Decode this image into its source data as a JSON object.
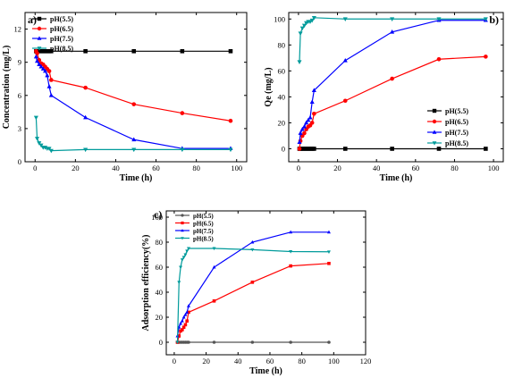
{
  "chart_data": [
    {
      "id": "a",
      "type": "line",
      "panel_label": "a)",
      "xlabel": "Time (h)",
      "ylabel": "Concentration (mg/L)",
      "xlim": [
        -5,
        105
      ],
      "ylim": [
        0,
        13.5
      ],
      "xticks": [
        0,
        20,
        40,
        60,
        80,
        100
      ],
      "yticks": [
        0,
        3,
        6,
        9,
        12
      ],
      "legend_position": "top-left",
      "series": [
        {
          "name": "pH(5.5)",
          "color": "#000000",
          "marker": "square",
          "points": [
            [
              0.5,
              10
            ],
            [
              1,
              10
            ],
            [
              2,
              10
            ],
            [
              3,
              10
            ],
            [
              4,
              10
            ],
            [
              5,
              10
            ],
            [
              6,
              10
            ],
            [
              7,
              10
            ],
            [
              8,
              10
            ],
            [
              25,
              10
            ],
            [
              49,
              10
            ],
            [
              73,
              10
            ],
            [
              97,
              10
            ]
          ]
        },
        {
          "name": "pH(6.5)",
          "color": "#ff0000",
          "marker": "circle",
          "points": [
            [
              0.5,
              10
            ],
            [
              1,
              9.8
            ],
            [
              2,
              9.2
            ],
            [
              3,
              8.9
            ],
            [
              4,
              8.8
            ],
            [
              5,
              8.6
            ],
            [
              6,
              8.4
            ],
            [
              7,
              8.2
            ],
            [
              8,
              7.4
            ],
            [
              25,
              6.7
            ],
            [
              49,
              5.2
            ],
            [
              73,
              4.4
            ],
            [
              97,
              3.7
            ]
          ]
        },
        {
          "name": "pH(7.5)",
          "color": "#0000ff",
          "marker": "triangle-up",
          "points": [
            [
              0.5,
              9.5
            ],
            [
              1,
              9.1
            ],
            [
              2,
              8.8
            ],
            [
              3,
              8.6
            ],
            [
              4,
              8.4
            ],
            [
              5,
              8.2
            ],
            [
              6,
              7.8
            ],
            [
              7,
              6.8
            ],
            [
              8,
              6.0
            ],
            [
              25,
              4.0
            ],
            [
              49,
              2.0
            ],
            [
              73,
              1.2
            ],
            [
              97,
              1.2
            ]
          ]
        },
        {
          "name": "pH(8.5)",
          "color": "#009b9b",
          "marker": "triangle-down",
          "points": [
            [
              0.5,
              4.0
            ],
            [
              1,
              2.1
            ],
            [
              2,
              1.7
            ],
            [
              3,
              1.5
            ],
            [
              4,
              1.3
            ],
            [
              5,
              1.3
            ],
            [
              6,
              1.2
            ],
            [
              7,
              1.2
            ],
            [
              8,
              1.0
            ],
            [
              25,
              1.1
            ],
            [
              49,
              1.1
            ],
            [
              73,
              1.1
            ],
            [
              97,
              1.1
            ]
          ]
        }
      ]
    },
    {
      "id": "b",
      "type": "line",
      "panel_label": "b)",
      "xlabel": "Time (h)",
      "ylabel": "Qe (mg/L)",
      "xlim": [
        -5,
        105
      ],
      "ylim": [
        -10,
        105
      ],
      "xticks": [
        0,
        20,
        40,
        60,
        80,
        100
      ],
      "yticks": [
        0,
        20,
        40,
        60,
        80,
        100
      ],
      "legend_position": "lower-right",
      "series": [
        {
          "name": "pH(5.5)",
          "color": "#000000",
          "marker": "square",
          "points": [
            [
              0.5,
              0
            ],
            [
              1,
              0
            ],
            [
              2,
              0
            ],
            [
              3,
              0
            ],
            [
              4,
              0
            ],
            [
              5,
              0
            ],
            [
              6,
              0
            ],
            [
              7,
              0
            ],
            [
              8,
              0
            ],
            [
              24,
              0
            ],
            [
              48,
              0
            ],
            [
              72,
              0
            ],
            [
              96,
              0
            ]
          ]
        },
        {
          "name": "pH(6.5)",
          "color": "#ff0000",
          "marker": "circle",
          "points": [
            [
              0.5,
              0
            ],
            [
              1,
              6
            ],
            [
              2,
              10
            ],
            [
              3,
              12
            ],
            [
              4,
              15
            ],
            [
              5,
              17
            ],
            [
              6,
              18
            ],
            [
              7,
              20
            ],
            [
              8,
              27
            ],
            [
              24,
              37
            ],
            [
              48,
              54
            ],
            [
              72,
              69
            ],
            [
              96,
              71
            ]
          ]
        },
        {
          "name": "pH(7.5)",
          "color": "#0000ff",
          "marker": "triangle-up",
          "points": [
            [
              0.5,
              5
            ],
            [
              1,
              12
            ],
            [
              2,
              15
            ],
            [
              3,
              17
            ],
            [
              4,
              20
            ],
            [
              5,
              22
            ],
            [
              6,
              24
            ],
            [
              7,
              36
            ],
            [
              8,
              45
            ],
            [
              24,
              68
            ],
            [
              48,
              90
            ],
            [
              72,
              99
            ],
            [
              96,
              99
            ]
          ]
        },
        {
          "name": "pH(8.5)",
          "color": "#009b9b",
          "marker": "triangle-down",
          "points": [
            [
              0.5,
              67
            ],
            [
              1,
              89
            ],
            [
              2,
              93
            ],
            [
              3,
              95
            ],
            [
              4,
              97
            ],
            [
              5,
              98
            ],
            [
              6,
              98
            ],
            [
              7,
              99
            ],
            [
              8,
              101
            ],
            [
              24,
              100
            ],
            [
              48,
              100
            ],
            [
              72,
              100
            ],
            [
              96,
              100
            ]
          ]
        }
      ]
    },
    {
      "id": "c",
      "type": "line",
      "panel_label": "c)",
      "xlabel": "Time (h)",
      "ylabel": "Adsorption efficiency(%)",
      "xlim": [
        -5,
        120
      ],
      "ylim": [
        -10,
        105
      ],
      "xticks": [
        0,
        20,
        40,
        60,
        80,
        100,
        120
      ],
      "yticks": [
        0,
        20,
        40,
        60,
        80,
        100
      ],
      "legend_position": "top-left",
      "series": [
        {
          "name": "pH(5.5)",
          "color": "#555555",
          "marker": "circle",
          "points": [
            [
              2,
              0
            ],
            [
              3,
              0
            ],
            [
              4,
              0
            ],
            [
              5,
              0
            ],
            [
              6,
              0
            ],
            [
              7,
              0
            ],
            [
              8,
              0
            ],
            [
              9,
              0
            ],
            [
              25,
              0
            ],
            [
              49,
              0
            ],
            [
              73,
              0
            ],
            [
              97,
              0
            ]
          ]
        },
        {
          "name": "pH(6.5)",
          "color": "#ff0000",
          "marker": "square",
          "points": [
            [
              2,
              0
            ],
            [
              3,
              5
            ],
            [
              4,
              9
            ],
            [
              5,
              10
            ],
            [
              6,
              12
            ],
            [
              7,
              14
            ],
            [
              8,
              17
            ],
            [
              9,
              24
            ],
            [
              25,
              33
            ],
            [
              49,
              48
            ],
            [
              73,
              61
            ],
            [
              97,
              63
            ]
          ]
        },
        {
          "name": "pH(7.5)",
          "color": "#0000ff",
          "marker": "triangle-up",
          "points": [
            [
              2,
              5
            ],
            [
              3,
              12
            ],
            [
              4,
              15
            ],
            [
              5,
              17
            ],
            [
              6,
              20
            ],
            [
              7,
              22
            ],
            [
              8,
              24
            ],
            [
              9,
              29
            ],
            [
              25,
              60
            ],
            [
              49,
              80
            ],
            [
              73,
              88
            ],
            [
              97,
              88
            ]
          ]
        },
        {
          "name": "pH(8.5)",
          "color": "#009b9b",
          "marker": "triangle-down",
          "points": [
            [
              2,
              0
            ],
            [
              3,
              48
            ],
            [
              4,
              60
            ],
            [
              5,
              66
            ],
            [
              6,
              68
            ],
            [
              7,
              70
            ],
            [
              8,
              73
            ],
            [
              9,
              75
            ],
            [
              25,
              75
            ],
            [
              49,
              74
            ],
            [
              73,
              72.5
            ],
            [
              97,
              72.3
            ]
          ]
        }
      ]
    }
  ]
}
